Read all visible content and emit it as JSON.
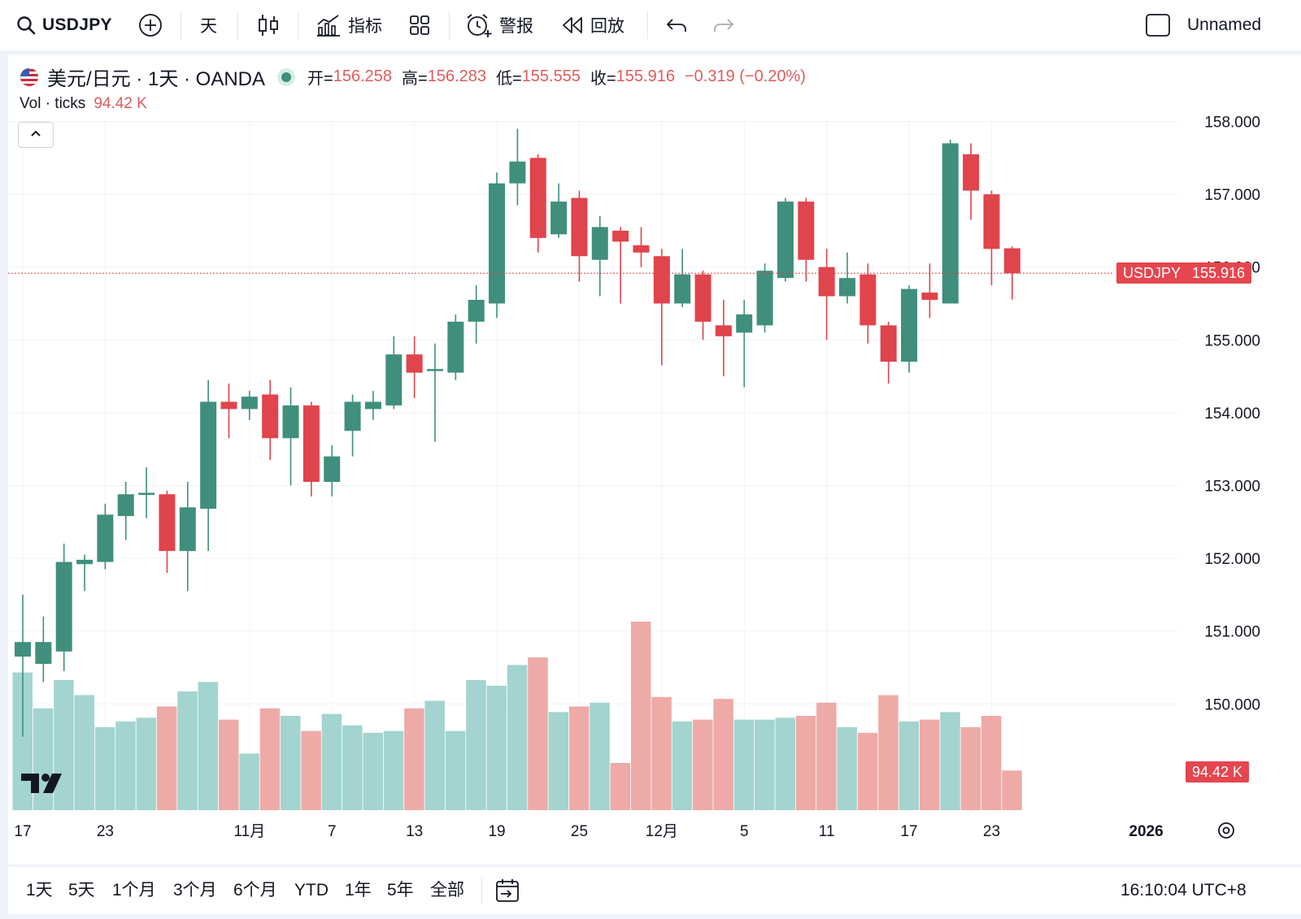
{
  "toolbar": {
    "symbol": "USDJPY",
    "interval": "天",
    "indicators_label": "指标",
    "alerts_label": "警报",
    "replay_label": "回放",
    "layout_name": "Unnamed"
  },
  "legend": {
    "title": "美元/日元 · 1天 · OANDA",
    "open_label": "开=",
    "open": "156.258",
    "high_label": "高=",
    "high": "156.283",
    "low_label": "低=",
    "low": "155.555",
    "close_label": "收=",
    "close": "155.916",
    "change": "−0.319 (−0.20%)",
    "volume_label": "Vol · ticks",
    "volume_value": "94.42 K"
  },
  "price_tag": {
    "symbol": "USDJPY",
    "price": "155.916"
  },
  "volume_tag": "94.42 K",
  "bottom_bar": {
    "ranges": [
      "1天",
      "5天",
      "1个月",
      "3个月",
      "6个月",
      "YTD",
      "1年",
      "5年",
      "全部"
    ],
    "clock": "16:10:04 UTC+8"
  },
  "colors": {
    "up": "#3f8f7c",
    "down": "#e0444c",
    "vol_up": "#a3d4cf",
    "vol_down": "#eeaaa7",
    "tag_red": "#e5464f"
  },
  "chart_data": {
    "type": "candlestick",
    "symbol": "USDJPY",
    "y_ticks": [
      "158.000",
      "157.000",
      "156.000",
      "155.000",
      "154.000",
      "153.000",
      "152.000",
      "151.000",
      "150.000"
    ],
    "ylim": [
      149.6,
      158.3
    ],
    "x_labels": [
      "17",
      "23",
      "11月",
      "7",
      "13",
      "19",
      "25",
      "12月",
      "5",
      "11",
      "17",
      "23",
      "2026"
    ],
    "x_label_index": [
      0,
      4,
      11,
      15,
      19,
      23,
      27,
      31,
      35,
      39,
      43,
      47,
      54.5
    ],
    "last_price": 155.916,
    "candles": [
      {
        "o": 150.65,
        "h": 151.5,
        "l": 149.55,
        "c": 150.85,
        "v": 0.73
      },
      {
        "o": 150.55,
        "h": 151.2,
        "l": 150.3,
        "c": 150.85,
        "v": 0.54
      },
      {
        "o": 150.72,
        "h": 152.2,
        "l": 150.45,
        "c": 151.95,
        "v": 0.69
      },
      {
        "o": 151.92,
        "h": 152.05,
        "l": 151.55,
        "c": 151.98,
        "v": 0.61
      },
      {
        "o": 151.95,
        "h": 152.75,
        "l": 151.85,
        "c": 152.6,
        "v": 0.44
      },
      {
        "o": 152.58,
        "h": 153.05,
        "l": 152.25,
        "c": 152.88,
        "v": 0.47
      },
      {
        "o": 152.87,
        "h": 153.25,
        "l": 152.55,
        "c": 152.9,
        "v": 0.49
      },
      {
        "o": 152.88,
        "h": 152.93,
        "l": 151.8,
        "c": 152.1,
        "v": 0.55,
        "d": 1
      },
      {
        "o": 152.1,
        "h": 153.05,
        "l": 151.55,
        "c": 152.7,
        "v": 0.63
      },
      {
        "o": 152.68,
        "h": 154.45,
        "l": 152.1,
        "c": 154.15,
        "v": 0.68
      },
      {
        "o": 154.15,
        "h": 154.4,
        "l": 153.65,
        "c": 154.05,
        "v": 0.48,
        "d": 1
      },
      {
        "o": 154.05,
        "h": 154.3,
        "l": 153.9,
        "c": 154.22,
        "v": 0.3
      },
      {
        "o": 154.25,
        "h": 154.45,
        "l": 153.35,
        "c": 153.65,
        "v": 0.54,
        "d": 1
      },
      {
        "o": 153.65,
        "h": 154.35,
        "l": 153.0,
        "c": 154.1,
        "v": 0.5
      },
      {
        "o": 154.1,
        "h": 154.15,
        "l": 152.85,
        "c": 153.05,
        "v": 0.42,
        "d": 1
      },
      {
        "o": 153.05,
        "h": 153.55,
        "l": 152.85,
        "c": 153.4,
        "v": 0.51
      },
      {
        "o": 153.75,
        "h": 154.25,
        "l": 153.4,
        "c": 154.15,
        "v": 0.45
      },
      {
        "o": 154.05,
        "h": 154.3,
        "l": 153.9,
        "c": 154.15,
        "v": 0.41
      },
      {
        "o": 154.1,
        "h": 155.05,
        "l": 154.05,
        "c": 154.8,
        "v": 0.42
      },
      {
        "o": 154.8,
        "h": 155.05,
        "l": 154.2,
        "c": 154.55,
        "v": 0.54,
        "d": 1
      },
      {
        "o": 154.6,
        "h": 154.95,
        "l": 153.6,
        "c": 154.6,
        "v": 0.58
      },
      {
        "o": 154.55,
        "h": 155.35,
        "l": 154.45,
        "c": 155.25,
        "v": 0.42
      },
      {
        "o": 155.25,
        "h": 155.75,
        "l": 154.95,
        "c": 155.55,
        "v": 0.69
      },
      {
        "o": 155.5,
        "h": 157.3,
        "l": 155.3,
        "c": 157.15,
        "v": 0.66
      },
      {
        "o": 157.15,
        "h": 157.9,
        "l": 156.85,
        "c": 157.45,
        "v": 0.77
      },
      {
        "o": 157.5,
        "h": 157.55,
        "l": 156.2,
        "c": 156.4,
        "v": 0.81,
        "d": 1
      },
      {
        "o": 156.45,
        "h": 157.15,
        "l": 156.4,
        "c": 156.9,
        "v": 0.52
      },
      {
        "o": 156.95,
        "h": 157.05,
        "l": 155.8,
        "c": 156.15,
        "v": 0.55,
        "d": 1
      },
      {
        "o": 156.1,
        "h": 156.7,
        "l": 155.6,
        "c": 156.55,
        "v": 0.57
      },
      {
        "o": 156.5,
        "h": 156.55,
        "l": 155.5,
        "c": 156.35,
        "v": 0.25,
        "d": 1
      },
      {
        "o": 156.3,
        "h": 156.55,
        "l": 156.0,
        "c": 156.2,
        "v": 1.0,
        "d": 1
      },
      {
        "o": 156.15,
        "h": 156.25,
        "l": 154.65,
        "c": 155.5,
        "v": 0.6,
        "d": 1
      },
      {
        "o": 155.5,
        "h": 156.25,
        "l": 155.45,
        "c": 155.9,
        "v": 0.47
      },
      {
        "o": 155.9,
        "h": 155.95,
        "l": 155.0,
        "c": 155.25,
        "v": 0.48,
        "d": 1
      },
      {
        "o": 155.2,
        "h": 155.55,
        "l": 154.5,
        "c": 155.05,
        "v": 0.59,
        "d": 1
      },
      {
        "o": 155.1,
        "h": 155.55,
        "l": 154.35,
        "c": 155.35,
        "v": 0.48
      },
      {
        "o": 155.2,
        "h": 156.05,
        "l": 155.1,
        "c": 155.95,
        "v": 0.48
      },
      {
        "o": 155.85,
        "h": 156.95,
        "l": 155.8,
        "c": 156.9,
        "v": 0.49
      },
      {
        "o": 156.9,
        "h": 156.95,
        "l": 155.8,
        "c": 156.1,
        "v": 0.5,
        "d": 1
      },
      {
        "o": 156.0,
        "h": 156.25,
        "l": 155.0,
        "c": 155.6,
        "v": 0.57,
        "d": 1
      },
      {
        "o": 155.6,
        "h": 156.2,
        "l": 155.5,
        "c": 155.85,
        "v": 0.44
      },
      {
        "o": 155.9,
        "h": 156.05,
        "l": 154.95,
        "c": 155.2,
        "v": 0.41,
        "d": 1
      },
      {
        "o": 155.2,
        "h": 155.25,
        "l": 154.4,
        "c": 154.7,
        "v": 0.61,
        "d": 1
      },
      {
        "o": 154.7,
        "h": 155.75,
        "l": 154.55,
        "c": 155.7,
        "v": 0.47
      },
      {
        "o": 155.65,
        "h": 156.05,
        "l": 155.3,
        "c": 155.55,
        "v": 0.48,
        "d": 1
      },
      {
        "o": 155.5,
        "h": 157.75,
        "l": 155.5,
        "c": 157.7,
        "v": 0.52
      },
      {
        "o": 157.55,
        "h": 157.7,
        "l": 156.65,
        "c": 157.05,
        "v": 0.44,
        "d": 1
      },
      {
        "o": 157.0,
        "h": 157.05,
        "l": 155.75,
        "c": 156.25,
        "v": 0.5,
        "d": 1
      },
      {
        "o": 156.258,
        "h": 156.283,
        "l": 155.555,
        "c": 155.916,
        "v": 0.21,
        "d": 1
      }
    ]
  }
}
